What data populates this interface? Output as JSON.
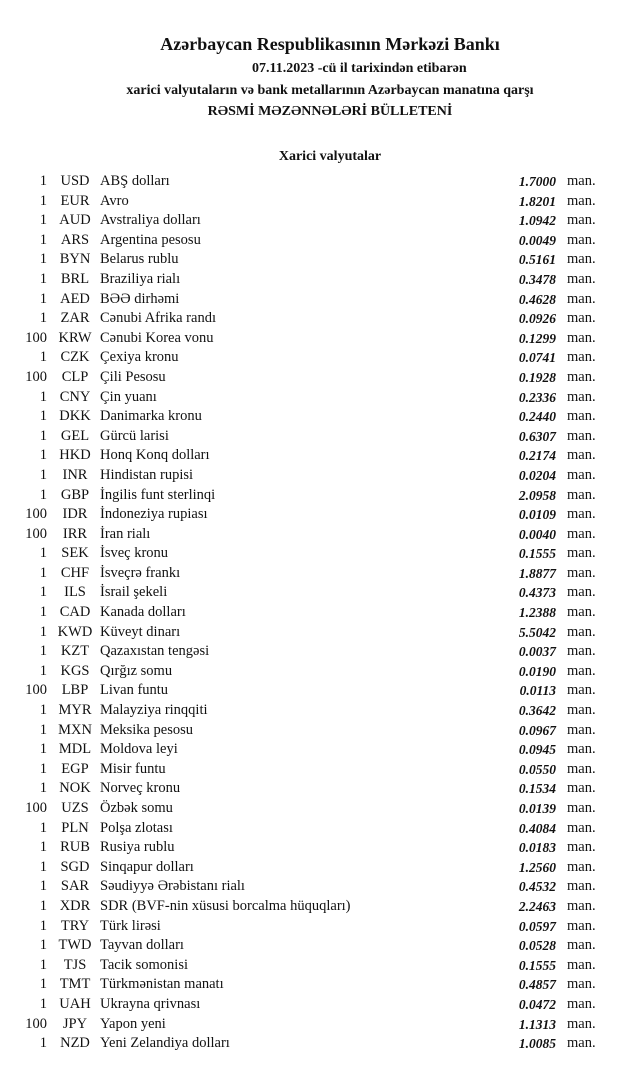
{
  "header": {
    "title": "Azərbaycan Respublikasının Mərkəzi Bankı",
    "date_line": "07.11.2023 -cü il tarixindən etibarən",
    "subtitle": "xarici valyutaların və bank metallarının Azərbaycan manatına qarşı",
    "bulletin": "RƏSMİ MƏZƏNNƏLƏRİ BÜLLETENİ",
    "section": "Xarici valyutalar"
  },
  "unit": "man.",
  "rates": [
    [
      "1",
      "USD",
      "ABŞ dolları",
      "1.7000"
    ],
    [
      "1",
      "EUR",
      "Avro",
      "1.8201"
    ],
    [
      "1",
      "AUD",
      "Avstraliya dolları",
      "1.0942"
    ],
    [
      "1",
      "ARS",
      "Argentina pesosu",
      "0.0049"
    ],
    [
      "1",
      "BYN",
      "Belarus rublu",
      "0.5161"
    ],
    [
      "1",
      "BRL",
      "Braziliya rialı",
      "0.3478"
    ],
    [
      "1",
      "AED",
      "BƏƏ dirhəmi",
      "0.4628"
    ],
    [
      "1",
      "ZAR",
      "Cənubi Afrika randı",
      "0.0926"
    ],
    [
      "100",
      "KRW",
      "Cənubi Korea vonu",
      "0.1299"
    ],
    [
      "1",
      "CZK",
      "Çexiya kronu",
      "0.0741"
    ],
    [
      "100",
      "CLP",
      "Çili Pesosu",
      "0.1928"
    ],
    [
      "1",
      "CNY",
      "Çin yuanı",
      "0.2336"
    ],
    [
      "1",
      "DKK",
      "Danimarka kronu",
      "0.2440"
    ],
    [
      "1",
      "GEL",
      "Gürcü larisi",
      "0.6307"
    ],
    [
      "1",
      "HKD",
      "Honq Konq dolları",
      "0.2174"
    ],
    [
      "1",
      "INR",
      "Hindistan rupisi",
      "0.0204"
    ],
    [
      "1",
      "GBP",
      "İngilis funt sterlinqi",
      "2.0958"
    ],
    [
      "100",
      "IDR",
      "İndoneziya rupiası",
      "0.0109"
    ],
    [
      "100",
      "IRR",
      "İran rialı",
      "0.0040"
    ],
    [
      "1",
      "SEK",
      "İsveç kronu",
      "0.1555"
    ],
    [
      "1",
      "CHF",
      "İsveçrə frankı",
      "1.8877"
    ],
    [
      "1",
      "ILS",
      "İsrail şekeli",
      "0.4373"
    ],
    [
      "1",
      "CAD",
      "Kanada dolları",
      "1.2388"
    ],
    [
      "1",
      "KWD",
      "Küveyt dinarı",
      "5.5042"
    ],
    [
      "1",
      "KZT",
      "Qazaxıstan tengəsi",
      "0.0037"
    ],
    [
      "1",
      "KGS",
      "Qırğız somu",
      "0.0190"
    ],
    [
      "100",
      "LBP",
      "Livan funtu",
      "0.0113"
    ],
    [
      "1",
      "MYR",
      "Malayziya rinqqiti",
      "0.3642"
    ],
    [
      "1",
      "MXN",
      "Meksika pesosu",
      "0.0967"
    ],
    [
      "1",
      "MDL",
      "Moldova leyi",
      "0.0945"
    ],
    [
      "1",
      "EGP",
      "Misir funtu",
      "0.0550"
    ],
    [
      "1",
      "NOK",
      "Norveç kronu",
      "0.1534"
    ],
    [
      "100",
      "UZS",
      "Özbək somu",
      "0.0139"
    ],
    [
      "1",
      "PLN",
      "Polşa zlotası",
      "0.4084"
    ],
    [
      "1",
      "RUB",
      "Rusiya rublu",
      "0.0183"
    ],
    [
      "1",
      "SGD",
      "Sinqapur dolları",
      "1.2560"
    ],
    [
      "1",
      "SAR",
      "Səudiyyə Ərəbistanı rialı",
      "0.4532"
    ],
    [
      "1",
      "XDR",
      "SDR (BVF-nin xüsusi borcalma hüquqları)",
      "2.2463"
    ],
    [
      "1",
      "TRY",
      "Türk lirəsi",
      "0.0597"
    ],
    [
      "1",
      "TWD",
      "Tayvan dolları",
      "0.0528"
    ],
    [
      "1",
      "TJS",
      "Tacik somonisi",
      "0.1555"
    ],
    [
      "1",
      "TMT",
      "Türkmənistan manatı",
      "0.4857"
    ],
    [
      "1",
      "UAH",
      "Ukrayna qrivnası",
      "0.0472"
    ],
    [
      "100",
      "JPY",
      "Yapon yeni",
      "1.1313"
    ],
    [
      "1",
      "NZD",
      "Yeni Zelandiya dolları",
      "1.0085"
    ]
  ]
}
